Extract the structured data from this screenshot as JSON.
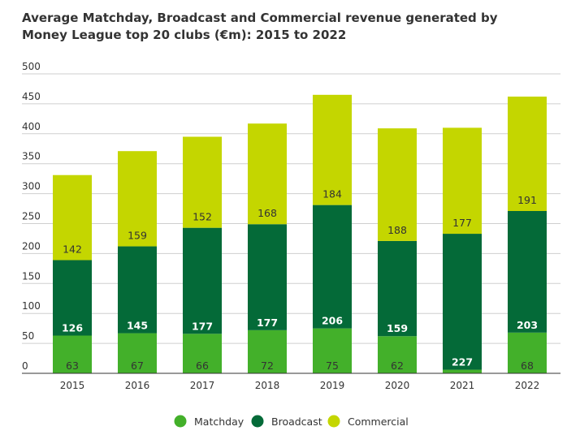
{
  "chart_data": {
    "type": "bar",
    "stacked": true,
    "title": "Average Matchday, Broadcast and Commercial revenue generated by Money League top 20 clubs (€m): 2015 to 2022",
    "xlabel": "",
    "ylabel": "",
    "ylim": [
      0,
      500
    ],
    "yticks": [
      0,
      50,
      100,
      150,
      200,
      250,
      300,
      350,
      400,
      450,
      500
    ],
    "grid": true,
    "legend_position": "bottom-center",
    "categories": [
      "2015",
      "2016",
      "2017",
      "2018",
      "2019",
      "2020",
      "2021",
      "2022"
    ],
    "series": [
      {
        "name": "Matchday",
        "color": "#43b02a",
        "label_color": "#333333",
        "values": [
          63,
          67,
          66,
          72,
          75,
          62,
          6,
          68
        ],
        "labels": [
          "63",
          "67",
          "66",
          "72",
          "75",
          "62",
          "",
          "68"
        ]
      },
      {
        "name": "Broadcast",
        "color": "#046a38",
        "label_color": "#ffffff",
        "values": [
          126,
          145,
          177,
          177,
          206,
          159,
          227,
          203
        ],
        "labels": [
          "126",
          "145",
          "177",
          "177",
          "206",
          "159",
          "227",
          "203"
        ]
      },
      {
        "name": "Commercial",
        "color": "#c4d600",
        "label_color": "#333333",
        "values": [
          142,
          159,
          152,
          168,
          184,
          188,
          177,
          191
        ],
        "labels": [
          "142",
          "159",
          "152",
          "168",
          "184",
          "188",
          "177",
          "191"
        ]
      }
    ]
  }
}
